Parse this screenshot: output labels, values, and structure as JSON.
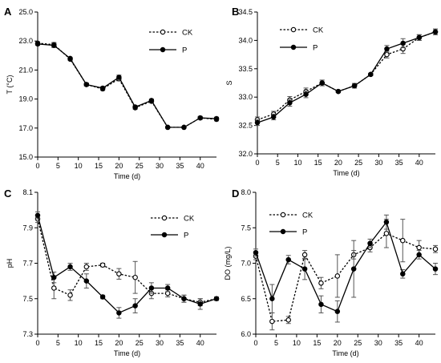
{
  "figure": {
    "series_styles": {
      "CK": {
        "line": "dashed",
        "marker": "open-circle",
        "color": "#000000"
      },
      "P": {
        "line": "solid",
        "marker": "filled-circle",
        "color": "#000000"
      }
    }
  },
  "chart_data": [
    {
      "panel": "A",
      "type": "line",
      "xlabel": "Time (d)",
      "ylabel": "T (°C)",
      "xlim": [
        0,
        44
      ],
      "ylim": [
        15.0,
        25.0
      ],
      "xticks": [
        0,
        5,
        10,
        15,
        20,
        25,
        30,
        35,
        40
      ],
      "yticks": [
        "15.0",
        "17.0",
        "19.0",
        "21.0",
        "23.0",
        "25.0"
      ],
      "legend": "top-right",
      "series": [
        {
          "name": "CK",
          "x": [
            0,
            4,
            8,
            12,
            16,
            20,
            24,
            28,
            32,
            36,
            40,
            44
          ],
          "values": [
            22.85,
            22.75,
            21.75,
            20.0,
            19.7,
            20.4,
            18.4,
            18.85,
            17.05,
            17.05,
            17.7,
            17.6
          ],
          "err": [
            0.1,
            0.15,
            0.08,
            0.1,
            0.1,
            0.15,
            0.1,
            0.1,
            0.05,
            0.05,
            0.1,
            0.1
          ]
        },
        {
          "name": "P",
          "x": [
            0,
            4,
            8,
            12,
            16,
            20,
            24,
            28,
            32,
            36,
            40,
            44
          ],
          "values": [
            22.8,
            22.7,
            21.8,
            20.0,
            19.75,
            20.5,
            18.45,
            18.9,
            17.05,
            17.05,
            17.7,
            17.65
          ],
          "err": [
            0.1,
            0.15,
            0.08,
            0.1,
            0.1,
            0.15,
            0.1,
            0.1,
            0.05,
            0.05,
            0.1,
            0.1
          ]
        }
      ]
    },
    {
      "panel": "B",
      "type": "line",
      "xlabel": "Time (d)",
      "ylabel": "S",
      "xlim": [
        0,
        44
      ],
      "ylim": [
        32.0,
        34.5
      ],
      "xticks": [
        0,
        5,
        10,
        15,
        20,
        25,
        30,
        35,
        40
      ],
      "yticks": [
        "32.0",
        "32.5",
        "33.0",
        "33.5",
        "34.0",
        "34.5"
      ],
      "legend": "top-right",
      "series": [
        {
          "name": "CK",
          "x": [
            0,
            4,
            8,
            12,
            16,
            20,
            24,
            28,
            32,
            36,
            40,
            44
          ],
          "values": [
            32.6,
            32.7,
            32.95,
            33.1,
            33.25,
            33.1,
            33.2,
            33.4,
            33.75,
            33.85,
            34.05,
            34.15
          ],
          "err": [
            0.05,
            0.05,
            0.06,
            0.06,
            0.05,
            0.02,
            0.04,
            0.02,
            0.06,
            0.08,
            0.05,
            0.05
          ]
        },
        {
          "name": "P",
          "x": [
            0,
            4,
            8,
            12,
            16,
            20,
            24,
            28,
            32,
            36,
            40,
            44
          ],
          "values": [
            32.55,
            32.65,
            32.9,
            33.05,
            33.25,
            33.1,
            33.2,
            33.4,
            33.85,
            33.95,
            34.05,
            34.15
          ],
          "err": [
            0.05,
            0.05,
            0.06,
            0.06,
            0.05,
            0.02,
            0.04,
            0.02,
            0.06,
            0.08,
            0.05,
            0.05
          ]
        }
      ]
    },
    {
      "panel": "C",
      "type": "line",
      "xlabel": "Time (d)",
      "ylabel": "pH",
      "xlim": [
        0,
        44
      ],
      "ylim": [
        7.3,
        8.1
      ],
      "xticks": [
        0,
        5,
        10,
        15,
        20,
        25,
        30,
        35,
        40
      ],
      "yticks": [
        "7.3",
        "7.5",
        "7.7",
        "7.9",
        "8.1"
      ],
      "legend": "top-right",
      "series": [
        {
          "name": "CK",
          "x": [
            0,
            4,
            8,
            12,
            16,
            20,
            24,
            28,
            32,
            36,
            40,
            44
          ],
          "values": [
            7.95,
            7.56,
            7.52,
            7.68,
            7.69,
            7.64,
            7.62,
            7.53,
            7.53,
            7.5,
            7.48,
            7.5
          ],
          "err": [
            0.02,
            0.06,
            0.03,
            0.02,
            0.01,
            0.03,
            0.09,
            0.03,
            0.02,
            0.02,
            0.02,
            0.01
          ]
        },
        {
          "name": "P",
          "x": [
            0,
            4,
            8,
            12,
            16,
            20,
            24,
            28,
            32,
            36,
            40,
            44
          ],
          "values": [
            7.97,
            7.62,
            7.68,
            7.6,
            7.51,
            7.42,
            7.46,
            7.56,
            7.56,
            7.5,
            7.47,
            7.5
          ],
          "err": [
            0.02,
            0.03,
            0.02,
            0.04,
            0.01,
            0.03,
            0.04,
            0.03,
            0.02,
            0.02,
            0.03,
            0.01
          ]
        }
      ]
    },
    {
      "panel": "D",
      "type": "line",
      "xlabel": "Time (d)",
      "ylabel": "DO (mg/L)",
      "xlim": [
        0,
        44
      ],
      "ylim": [
        6.0,
        8.0
      ],
      "xticks": [
        0,
        5,
        10,
        15,
        20,
        25,
        30,
        35,
        40
      ],
      "yticks": [
        "6.0",
        "6.5",
        "7.0",
        "7.5",
        "8.0"
      ],
      "legend": "top-left",
      "series": [
        {
          "name": "CK",
          "x": [
            0,
            4,
            8,
            12,
            16,
            20,
            24,
            28,
            32,
            36,
            40,
            44
          ],
          "values": [
            7.1,
            6.18,
            6.2,
            7.12,
            6.72,
            6.82,
            7.12,
            7.22,
            7.42,
            7.32,
            7.22,
            7.2
          ],
          "err": [
            0.05,
            0.12,
            0.05,
            0.06,
            0.08,
            0.3,
            0.06,
            0.06,
            0.2,
            0.3,
            0.1,
            0.05
          ]
        },
        {
          "name": "P",
          "x": [
            0,
            4,
            8,
            12,
            16,
            20,
            24,
            28,
            32,
            36,
            40,
            44
          ],
          "values": [
            7.15,
            6.5,
            7.05,
            6.92,
            6.42,
            6.32,
            6.92,
            7.28,
            7.58,
            6.85,
            7.12,
            6.92
          ],
          "err": [
            0.05,
            0.2,
            0.06,
            0.15,
            0.12,
            0.15,
            0.4,
            0.06,
            0.1,
            0.06,
            0.06,
            0.08
          ]
        }
      ]
    }
  ]
}
